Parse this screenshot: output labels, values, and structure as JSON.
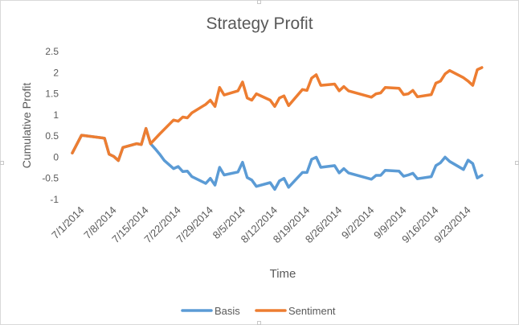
{
  "chart_data": {
    "type": "line",
    "title": "Strategy Profit",
    "xlabel": "Time",
    "ylabel": "Cumulative Profit",
    "ylim": [
      -1,
      2.5
    ],
    "yticks": [
      "2.5",
      "2",
      "1.5",
      "1",
      "0.5",
      "0",
      "-0.5",
      "-1"
    ],
    "xlim": [
      "2014-06-29",
      "2014-09-29"
    ],
    "xticks": [
      "7/1/2014",
      "7/8/2014",
      "7/15/2014",
      "7/22/2014",
      "7/29/2014",
      "8/5/2014",
      "8/12/2014",
      "8/19/2014",
      "8/26/2014",
      "9/2/2014",
      "9/9/2014",
      "9/16/2014",
      "9/23/2014"
    ],
    "legend_position": "bottom",
    "grid": false,
    "series": [
      {
        "name": "Basis",
        "color": "#5b9bd5",
        "points": [
          [
            "2014-06-29",
            0.1
          ],
          [
            "2014-07-01",
            0.52
          ],
          [
            "2014-07-06",
            0.45
          ],
          [
            "2014-07-07",
            0.07
          ],
          [
            "2014-07-08",
            0.02
          ],
          [
            "2014-07-09",
            -0.08
          ],
          [
            "2014-07-10",
            0.23
          ],
          [
            "2014-07-13",
            0.32
          ],
          [
            "2014-07-14",
            0.3
          ],
          [
            "2014-07-15",
            0.68
          ],
          [
            "2014-07-16",
            0.32
          ],
          [
            "2014-07-17",
            0.2
          ],
          [
            "2014-07-18",
            0.07
          ],
          [
            "2014-07-19",
            -0.08
          ],
          [
            "2014-07-21",
            -0.27
          ],
          [
            "2014-07-22",
            -0.22
          ],
          [
            "2014-07-23",
            -0.34
          ],
          [
            "2014-07-24",
            -0.33
          ],
          [
            "2014-07-25",
            -0.46
          ],
          [
            "2014-07-28",
            -0.62
          ],
          [
            "2014-07-29",
            -0.5
          ],
          [
            "2014-07-30",
            -0.66
          ],
          [
            "2014-07-31",
            -0.24
          ],
          [
            "2014-08-01",
            -0.42
          ],
          [
            "2014-08-04",
            -0.35
          ],
          [
            "2014-08-05",
            -0.12
          ],
          [
            "2014-08-06",
            -0.48
          ],
          [
            "2014-08-07",
            -0.54
          ],
          [
            "2014-08-08",
            -0.69
          ],
          [
            "2014-08-11",
            -0.6
          ],
          [
            "2014-08-12",
            -0.76
          ],
          [
            "2014-08-13",
            -0.56
          ],
          [
            "2014-08-14",
            -0.5
          ],
          [
            "2014-08-15",
            -0.71
          ],
          [
            "2014-08-18",
            -0.36
          ],
          [
            "2014-08-19",
            -0.36
          ],
          [
            "2014-08-20",
            -0.05
          ],
          [
            "2014-08-21",
            0.0
          ],
          [
            "2014-08-22",
            -0.24
          ],
          [
            "2014-08-25",
            -0.2
          ],
          [
            "2014-08-26",
            -0.37
          ],
          [
            "2014-08-27",
            -0.27
          ],
          [
            "2014-08-28",
            -0.37
          ],
          [
            "2014-09-02",
            -0.52
          ],
          [
            "2014-09-03",
            -0.43
          ],
          [
            "2014-09-04",
            -0.43
          ],
          [
            "2014-09-05",
            -0.31
          ],
          [
            "2014-09-08",
            -0.33
          ],
          [
            "2014-09-09",
            -0.45
          ],
          [
            "2014-09-10",
            -0.42
          ],
          [
            "2014-09-11",
            -0.38
          ],
          [
            "2014-09-12",
            -0.51
          ],
          [
            "2014-09-15",
            -0.46
          ],
          [
            "2014-09-16",
            -0.2
          ],
          [
            "2014-09-17",
            -0.13
          ],
          [
            "2014-09-18",
            0.0
          ],
          [
            "2014-09-19",
            -0.1
          ],
          [
            "2014-09-22",
            -0.29
          ],
          [
            "2014-09-23",
            -0.07
          ],
          [
            "2014-09-24",
            -0.15
          ],
          [
            "2014-09-25",
            -0.49
          ],
          [
            "2014-09-26",
            -0.43
          ]
        ]
      },
      {
        "name": "Sentiment",
        "color": "#ed7d31",
        "points": [
          [
            "2014-06-29",
            0.1
          ],
          [
            "2014-07-01",
            0.52
          ],
          [
            "2014-07-06",
            0.45
          ],
          [
            "2014-07-07",
            0.07
          ],
          [
            "2014-07-08",
            0.02
          ],
          [
            "2014-07-09",
            -0.08
          ],
          [
            "2014-07-10",
            0.23
          ],
          [
            "2014-07-13",
            0.32
          ],
          [
            "2014-07-14",
            0.3
          ],
          [
            "2014-07-15",
            0.68
          ],
          [
            "2014-07-16",
            0.32
          ],
          [
            "2014-07-18",
            0.55
          ],
          [
            "2014-07-21",
            0.88
          ],
          [
            "2014-07-22",
            0.85
          ],
          [
            "2014-07-23",
            0.95
          ],
          [
            "2014-07-24",
            0.93
          ],
          [
            "2014-07-25",
            1.05
          ],
          [
            "2014-07-28",
            1.25
          ],
          [
            "2014-07-29",
            1.35
          ],
          [
            "2014-07-30",
            1.2
          ],
          [
            "2014-07-31",
            1.65
          ],
          [
            "2014-08-01",
            1.47
          ],
          [
            "2014-08-04",
            1.57
          ],
          [
            "2014-08-05",
            1.78
          ],
          [
            "2014-08-06",
            1.4
          ],
          [
            "2014-08-07",
            1.35
          ],
          [
            "2014-08-08",
            1.5
          ],
          [
            "2014-08-11",
            1.35
          ],
          [
            "2014-08-12",
            1.2
          ],
          [
            "2014-08-13",
            1.4
          ],
          [
            "2014-08-14",
            1.45
          ],
          [
            "2014-08-15",
            1.22
          ],
          [
            "2014-08-18",
            1.6
          ],
          [
            "2014-08-19",
            1.58
          ],
          [
            "2014-08-20",
            1.87
          ],
          [
            "2014-08-21",
            1.95
          ],
          [
            "2014-08-22",
            1.7
          ],
          [
            "2014-08-25",
            1.73
          ],
          [
            "2014-08-26",
            1.57
          ],
          [
            "2014-08-27",
            1.67
          ],
          [
            "2014-08-28",
            1.57
          ],
          [
            "2014-09-02",
            1.42
          ],
          [
            "2014-09-03",
            1.5
          ],
          [
            "2014-09-04",
            1.52
          ],
          [
            "2014-09-05",
            1.65
          ],
          [
            "2014-09-08",
            1.63
          ],
          [
            "2014-09-09",
            1.48
          ],
          [
            "2014-09-10",
            1.5
          ],
          [
            "2014-09-11",
            1.58
          ],
          [
            "2014-09-12",
            1.43
          ],
          [
            "2014-09-15",
            1.48
          ],
          [
            "2014-09-16",
            1.75
          ],
          [
            "2014-09-17",
            1.8
          ],
          [
            "2014-09-18",
            1.97
          ],
          [
            "2014-09-19",
            2.05
          ],
          [
            "2014-09-22",
            1.88
          ],
          [
            "2014-09-23",
            1.8
          ],
          [
            "2014-09-24",
            1.7
          ],
          [
            "2014-09-25",
            2.07
          ],
          [
            "2014-09-26",
            2.12
          ]
        ]
      }
    ]
  }
}
